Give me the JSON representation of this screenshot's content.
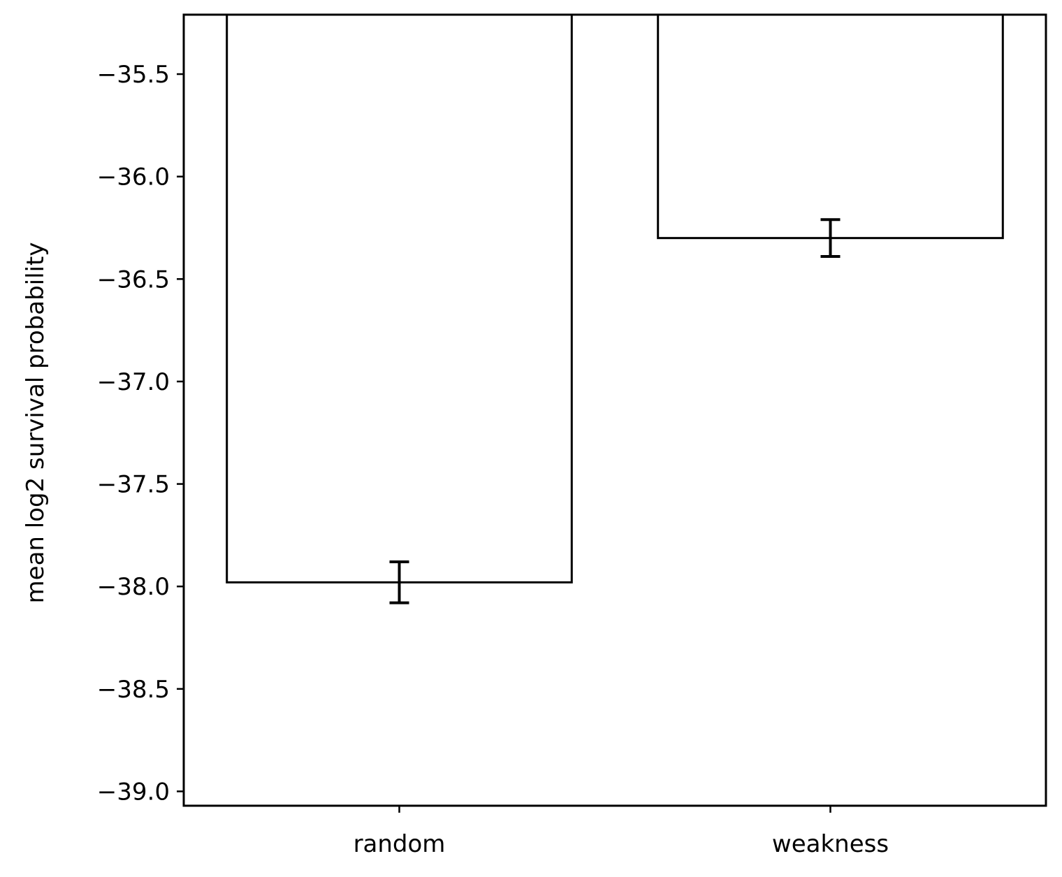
{
  "chart_data": {
    "type": "bar",
    "title": "",
    "xlabel": "",
    "ylabel": "mean log2 survival probability",
    "categories": [
      "random",
      "weakness"
    ],
    "values": [
      -37.98,
      -36.3
    ],
    "error": [
      0.1,
      0.09
    ],
    "ylim": [
      -39.07,
      -35.21
    ],
    "yticks": [
      -35.5,
      -36.0,
      -36.5,
      -37.0,
      -37.5,
      -38.0,
      -38.5,
      -39.0
    ],
    "ytick_labels": [
      "−35.5",
      "−36.0",
      "−36.5",
      "−37.0",
      "−37.5",
      "−38.0",
      "−38.5",
      "−39.0"
    ],
    "bar_fill": "#ffffff",
    "bar_edge": "#000000",
    "grid": false,
    "legend": "none"
  }
}
